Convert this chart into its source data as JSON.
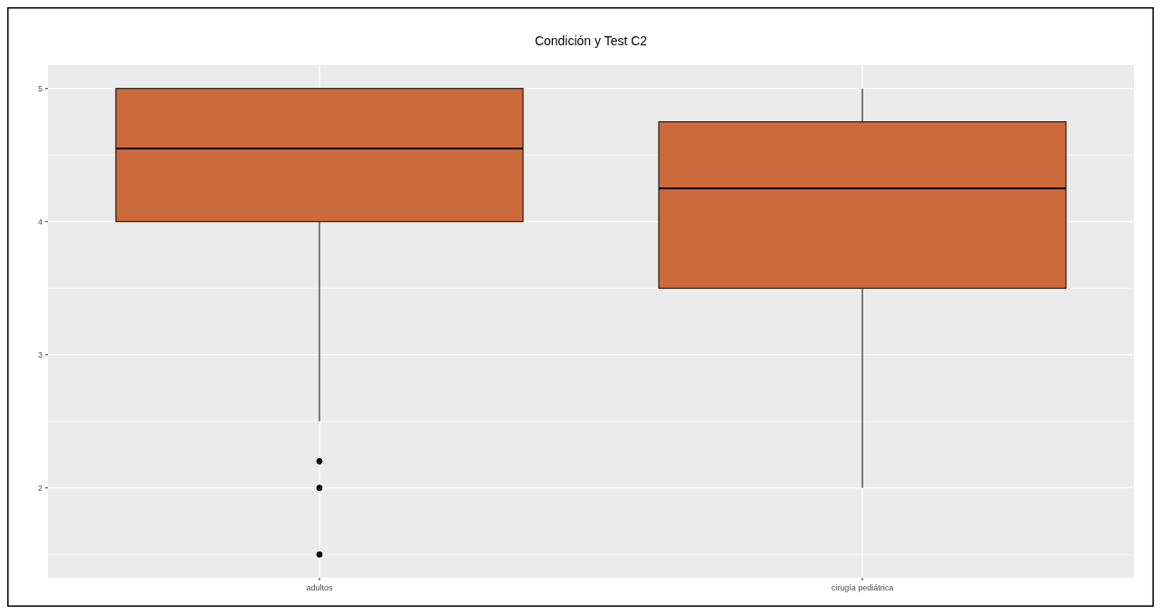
{
  "chart_data": {
    "type": "box",
    "title": "Condición y Test C2",
    "categories": [
      "adultos",
      "cirugía pediátrica"
    ],
    "color": "#cc6a3c",
    "grid": true,
    "ylim": [
      1.325,
      5.175
    ],
    "yticks": [
      2,
      3,
      4,
      5
    ],
    "boxes": [
      {
        "low": 2.5,
        "q1": 4,
        "median": 4.55,
        "q3": 5,
        "high": 5,
        "outliers": [
          2.2,
          2,
          1.5
        ]
      },
      {
        "low": 2,
        "q1": 3.5,
        "median": 4.25,
        "q3": 4.75,
        "high": 5
      }
    ]
  }
}
